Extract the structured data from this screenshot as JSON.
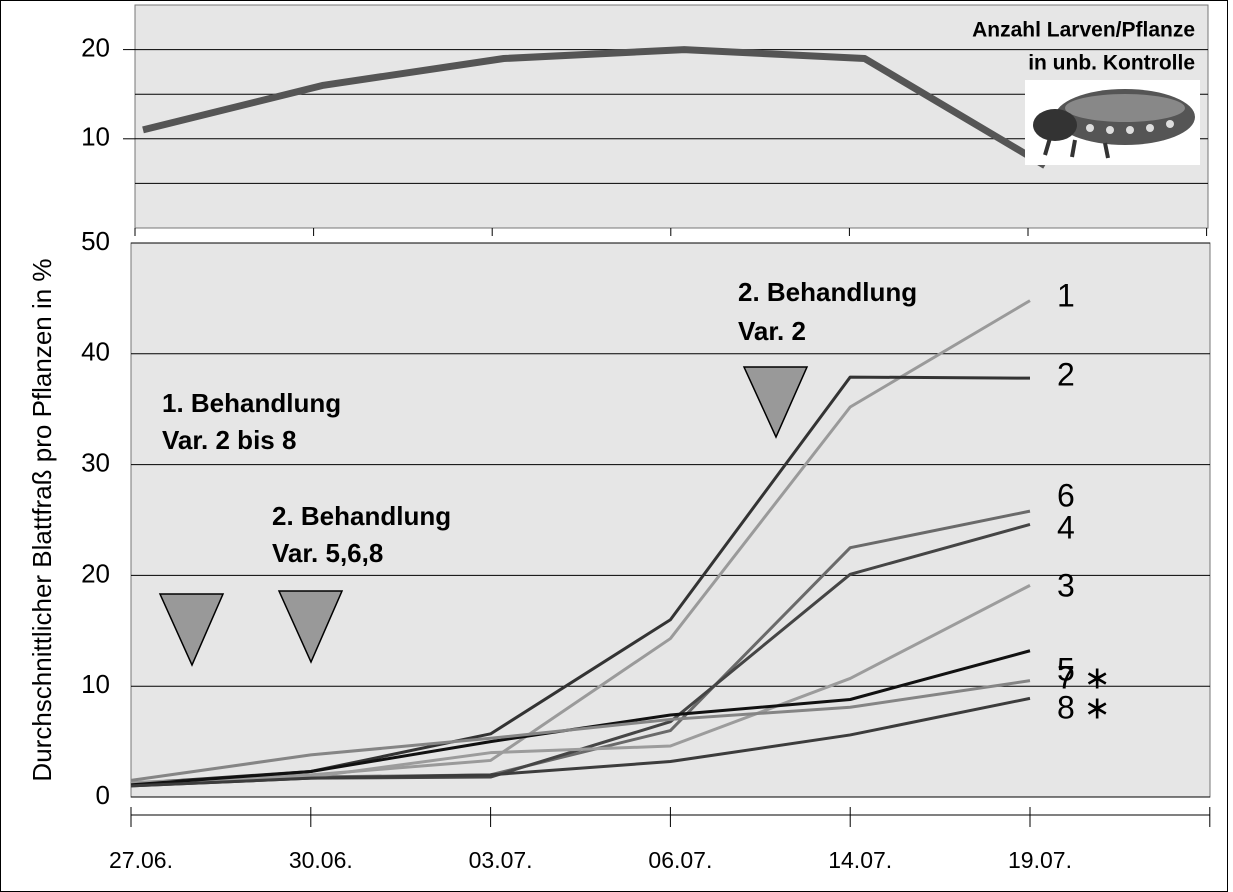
{
  "chart_data": [
    {
      "type": "line",
      "title_lines": [
        "Anzahl Larven/Pflanze",
        "in unb. Kontrolle"
      ],
      "values": [
        11,
        16,
        19,
        20,
        19,
        7
      ],
      "color": "#555555",
      "ylim": [
        0,
        25
      ],
      "yticks": [
        10,
        20
      ],
      "ygrid": [
        5,
        10,
        15,
        20
      ]
    },
    {
      "type": "line",
      "ylabel": "Durchschnittlicher Blattfraß pro Pflanzen in %",
      "categories": [
        "27.06.",
        "30.06.",
        "03.07.",
        "06.07.",
        "14.07.",
        "19.07."
      ],
      "ylim": [
        0,
        50
      ],
      "yticks": [
        0,
        10,
        20,
        30,
        40,
        50
      ],
      "annotations": [
        [
          "1. Behandlung",
          "Var. 2 bis 8"
        ],
        [
          "2. Behandlung",
          "Var. 5,6,8"
        ],
        [
          "2. Behandlung",
          "Var. 2"
        ]
      ],
      "series": [
        {
          "name": "1",
          "color": "#9a9a9a",
          "values": [
            1.3,
            2.0,
            3.3,
            14.3,
            35.2,
            44.8
          ]
        },
        {
          "name": "2",
          "color": "#333333",
          "values": [
            1.2,
            2.3,
            5.7,
            16.0,
            37.9,
            37.8
          ]
        },
        {
          "name": "6",
          "color": "#6a6a6a",
          "values": [
            1.1,
            1.8,
            2.0,
            6.0,
            22.5,
            25.8
          ]
        },
        {
          "name": "4",
          "color": "#454545",
          "values": [
            1.0,
            1.7,
            1.8,
            6.8,
            20.1,
            24.6
          ]
        },
        {
          "name": "3",
          "color": "#9c9c9c",
          "values": [
            1.3,
            1.8,
            4.0,
            4.6,
            10.7,
            19.1
          ]
        },
        {
          "name": "5",
          "color": "#111111",
          "values": [
            1.1,
            2.3,
            5.0,
            7.4,
            8.8,
            13.2
          ]
        },
        {
          "name": "7 ∗",
          "color": "#858585",
          "values": [
            1.5,
            3.8,
            5.3,
            7.0,
            8.1,
            10.5
          ]
        },
        {
          "name": "8 ∗",
          "color": "#3c3c3c",
          "values": [
            1.0,
            1.7,
            2.0,
            3.2,
            5.6,
            8.9
          ]
        }
      ]
    }
  ]
}
